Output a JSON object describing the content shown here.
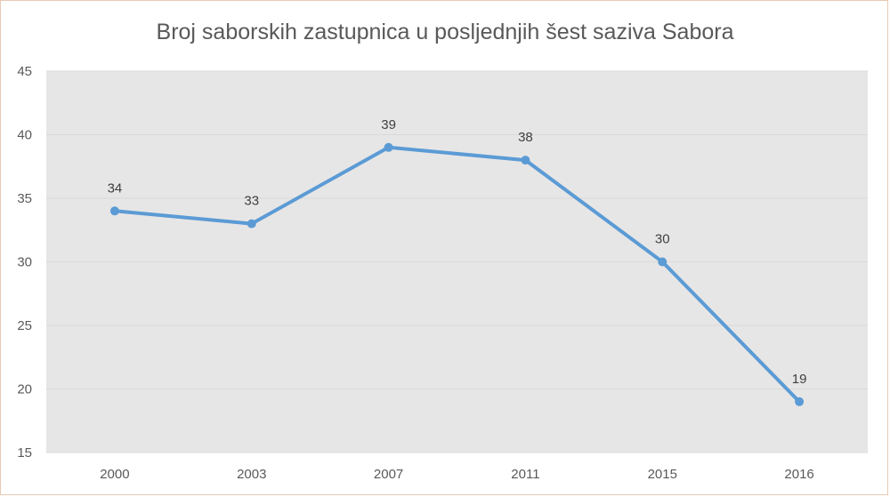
{
  "chart_data": {
    "type": "line",
    "title": "Broj saborskih zastupnica u posljednjih šest saziva Sabora",
    "categories": [
      "2000",
      "2003",
      "2007",
      "2011",
      "2015",
      "2016"
    ],
    "series": [
      {
        "values": [
          34,
          33,
          39,
          38,
          30,
          19
        ]
      }
    ],
    "yticks": [
      "15",
      "20",
      "25",
      "30",
      "35",
      "40",
      "45"
    ],
    "ylim": [
      15,
      45
    ],
    "grid": true,
    "legend": "none",
    "data_labels": true,
    "colors": {
      "line": "#5b9bd5",
      "plot_bg": "#e7e6e6",
      "grid": "#d9d9d9"
    }
  }
}
